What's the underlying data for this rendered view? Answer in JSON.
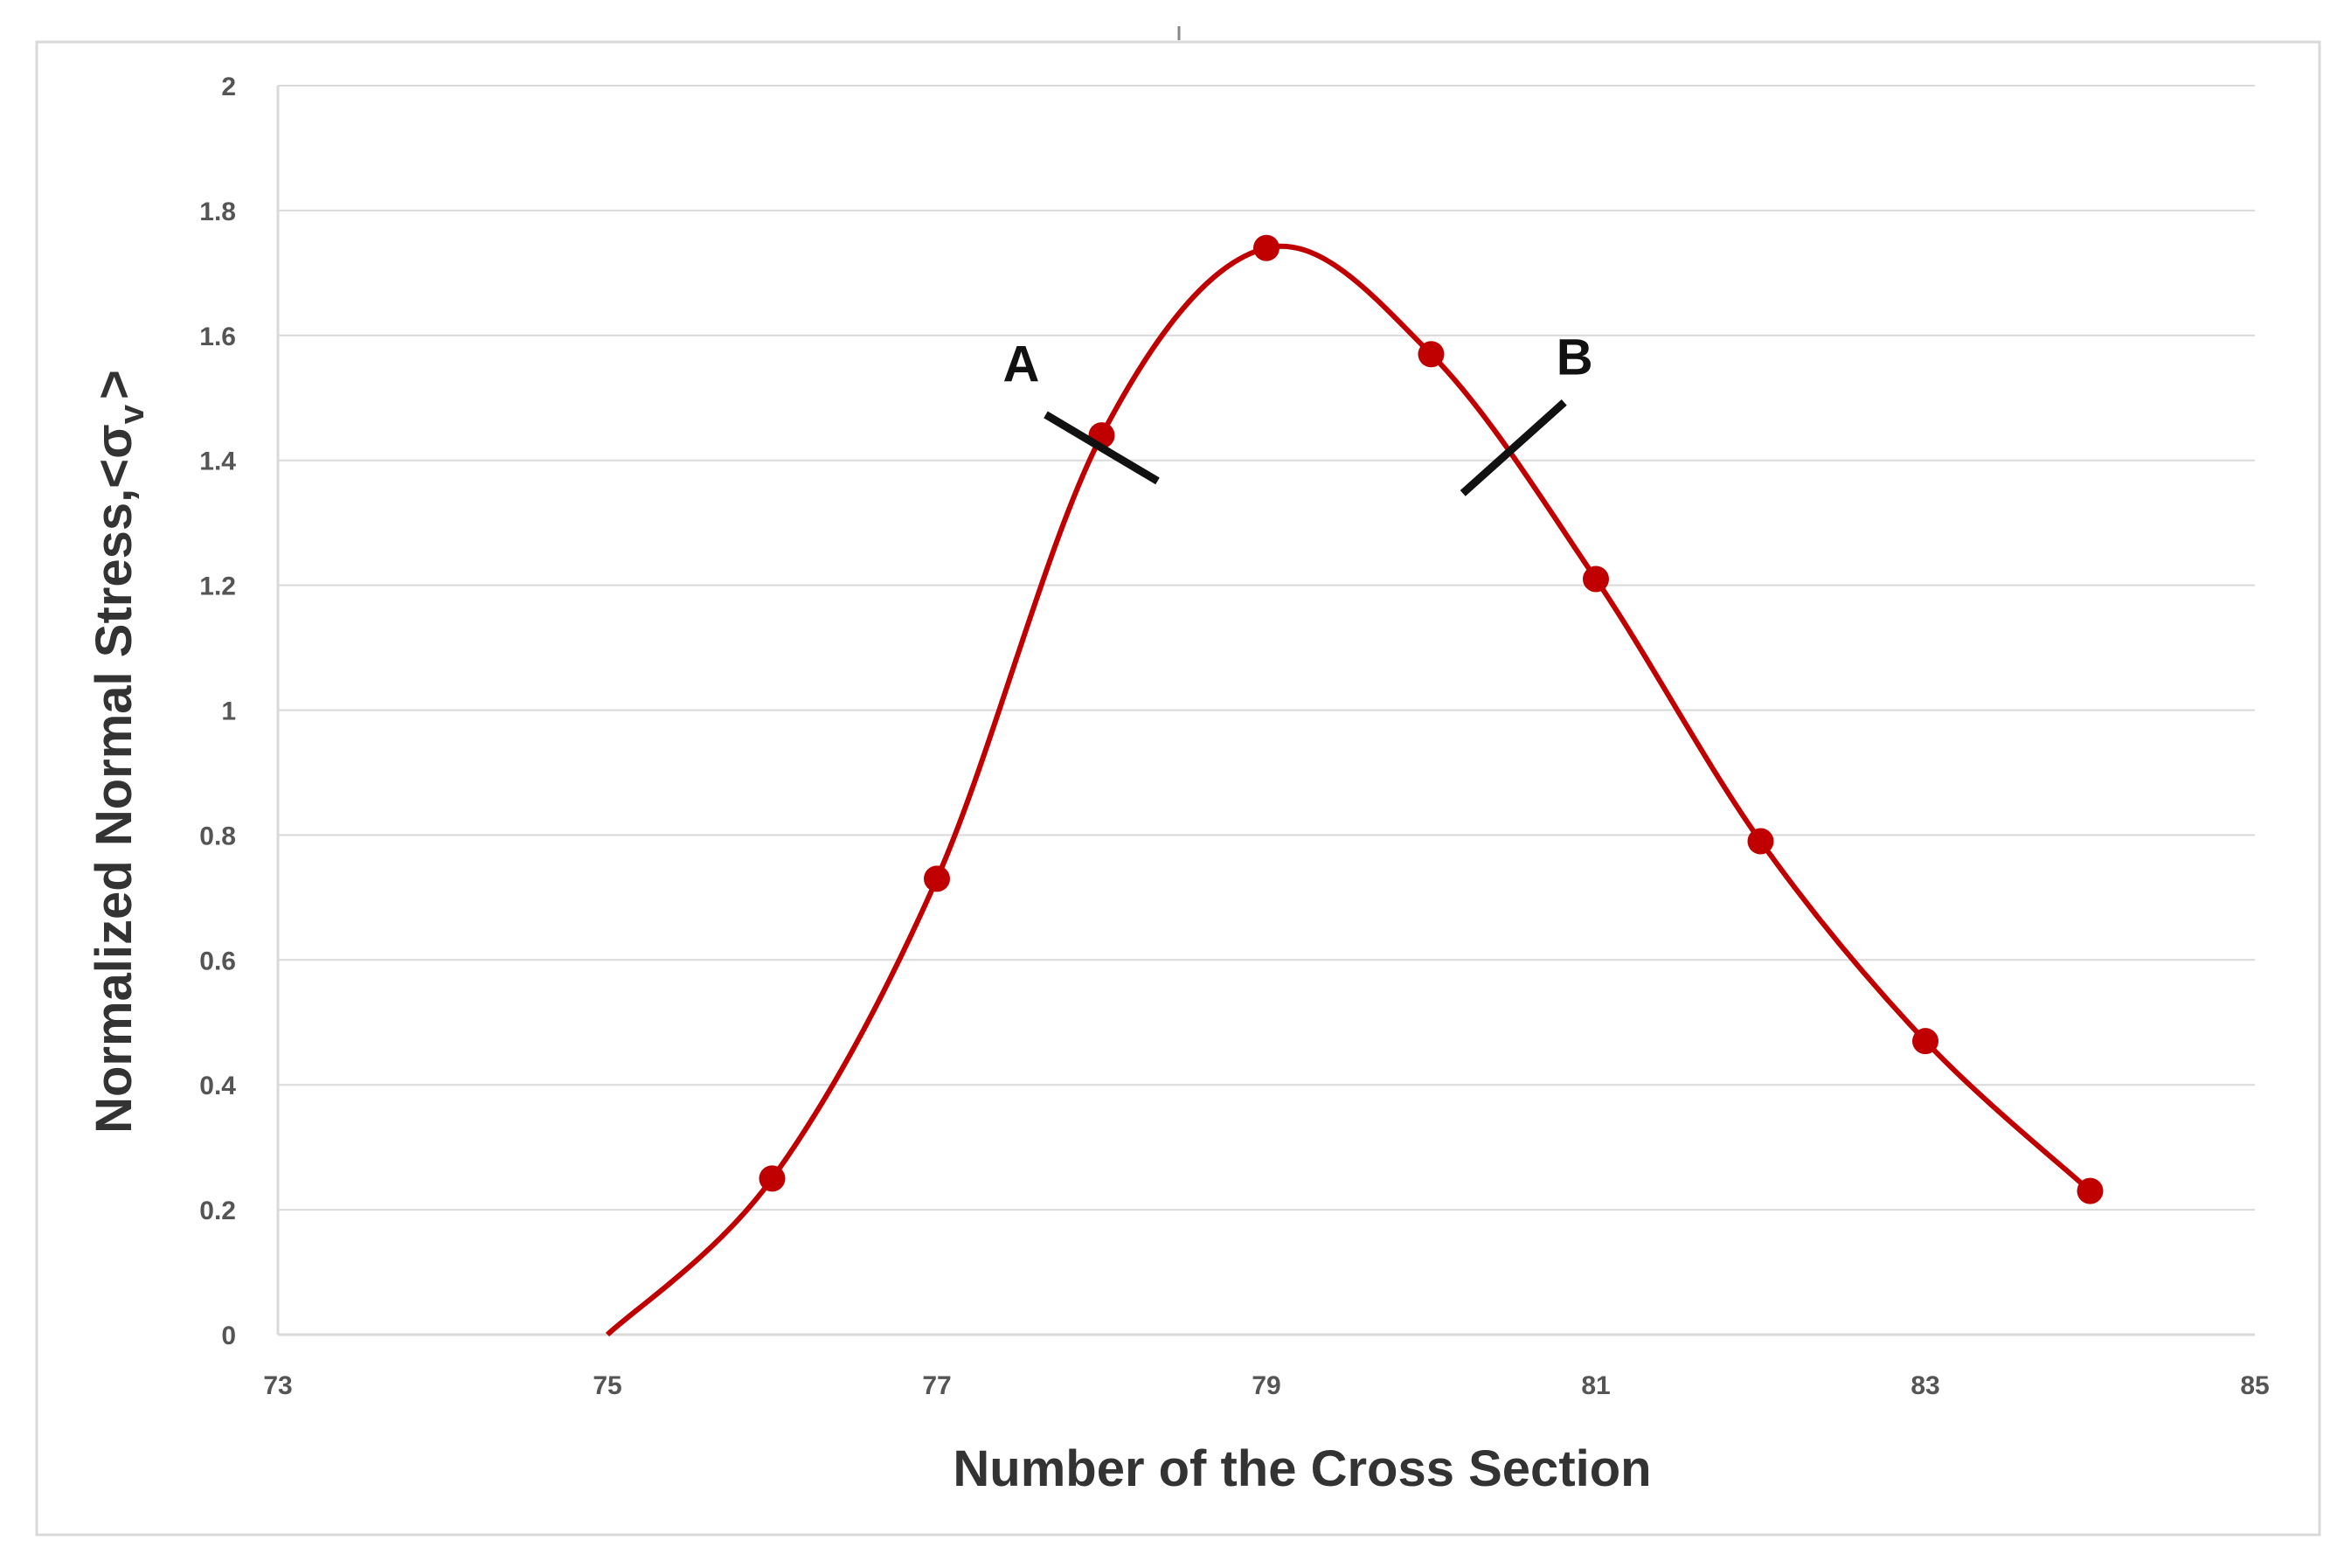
{
  "chart_data": {
    "type": "line",
    "xlabel": "Number of the Cross Section",
    "ylabel": "Normalized Normal Stress,<σ",
    "ylabel_subscript": "v",
    "ylabel_suffix": ">",
    "xlim": [
      73,
      85
    ],
    "ylim": [
      0,
      2
    ],
    "x_ticks": [
      "73",
      "75",
      "77",
      "79",
      "81",
      "83",
      "85"
    ],
    "y_ticks": [
      "0",
      "0.2",
      "0.4",
      "0.6",
      "0.8",
      "1",
      "1.2",
      "1.4",
      "1.6",
      "1.8",
      "2"
    ],
    "grid": true,
    "smooth": true,
    "series": [
      {
        "x": [
          75,
          76,
          77,
          78,
          79,
          80,
          81,
          82,
          83,
          84
        ],
        "y": [
          0,
          0.25,
          0.73,
          1.44,
          1.74,
          1.57,
          1.21,
          0.79,
          0.47,
          0.23
        ],
        "markers_from_index": 1
      }
    ],
    "annotations": [
      {
        "label": "A",
        "x": 78,
        "y": 1.42
      },
      {
        "label": "B",
        "x": 80.5,
        "y": 1.42
      }
    ],
    "colors": {
      "series": "#c00000",
      "grid": "#d9d9d9",
      "annotation": "#111111"
    }
  }
}
